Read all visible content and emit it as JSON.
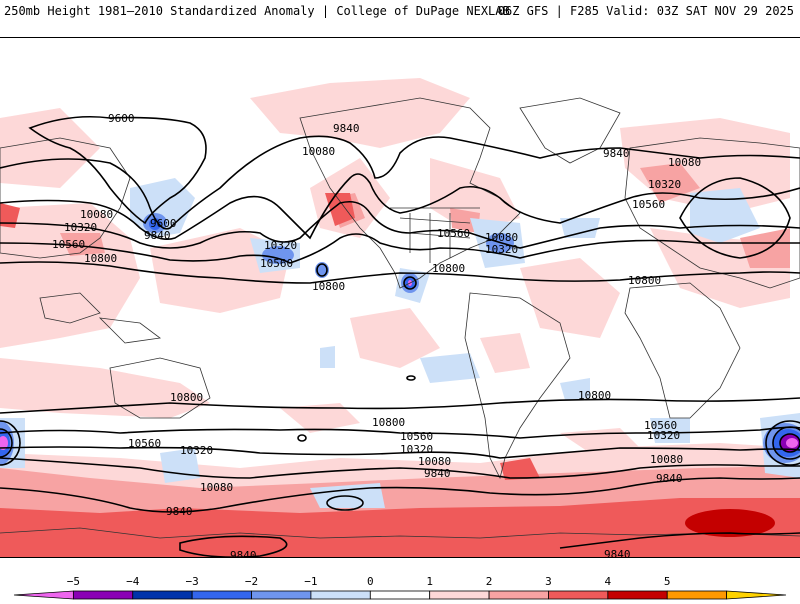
{
  "header": {
    "left": "250mb Height 1981–2010 Standardized Anomaly | College of DuPage NEXLAB",
    "right": "06Z GFS | F285 Valid: 03Z SAT NOV 29 2025"
  },
  "contours": {
    "labels": [
      "9600",
      "9840",
      "10080",
      "10080",
      "10320",
      "10560",
      "10800",
      "9600",
      "9840",
      "10320",
      "10560",
      "10800",
      "10560",
      "10800",
      "10080",
      "10320",
      "9840",
      "10080",
      "10320",
      "10560",
      "10800",
      "10800",
      "10560",
      "10320",
      "10080",
      "9840",
      "10800",
      "10800",
      "10560",
      "10320",
      "10080",
      "9840",
      "10560",
      "10320",
      "10080",
      "9840",
      "9840",
      "9840"
    ]
  },
  "colorbar": {
    "ticks": [
      "−5",
      "−4",
      "−3",
      "−2",
      "−1",
      "0",
      "1",
      "2",
      "3",
      "4",
      "5"
    ],
    "colors": [
      "#ee66ee",
      "#8a00b4",
      "#0033aa",
      "#3366ee",
      "#6f95ee",
      "#cce0f8",
      "#ffffff",
      "#fdd8d8",
      "#f7a3a3",
      "#ef5a5a",
      "#c40000",
      "#ff9900",
      "#ffd200"
    ]
  },
  "colors": {
    "pos1": "#fdd8d8",
    "pos2": "#f7a3a3",
    "pos3": "#ef5a5a",
    "pos4": "#c40000",
    "neg1": "#cce0f8",
    "neg2": "#6f95ee",
    "neg3": "#3366ee",
    "neg4": "#0033aa",
    "neg5": "#8a00b4",
    "neg6": "#ee66ee"
  }
}
